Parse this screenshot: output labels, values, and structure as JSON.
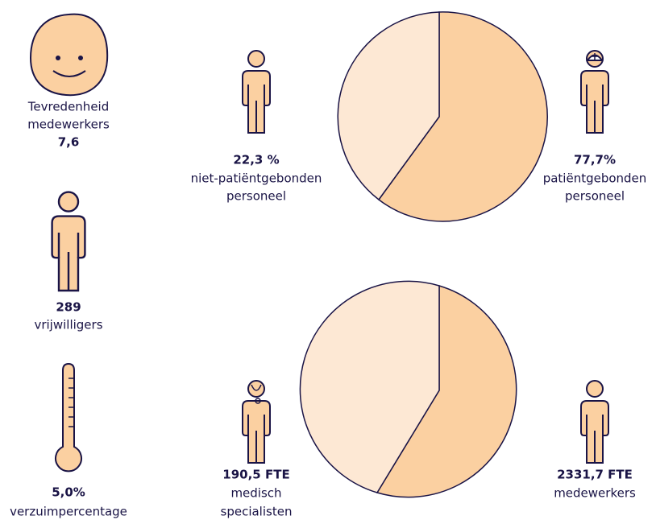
{
  "items": [
    {
      "label": [
        "Tevredenheid",
        "medewerkers"
      ],
      "value": "7,6"
    },
    {
      "value": "22,3 %",
      "label": [
        "niet-patiëntgebonden",
        "personeel"
      ]
    },
    {
      "value": "77,7%",
      "label": [
        "patiëntgebonden",
        "personeel"
      ]
    },
    {
      "value": "289",
      "label": [
        "vrijwilligers"
      ]
    },
    {
      "value": "5,0%",
      "label": [
        "verzuimpercentage"
      ]
    },
    {
      "value": "190,5 FTE",
      "label": [
        "medisch",
        "specialisten"
      ]
    },
    {
      "value": "2331,7 FTE",
      "label": [
        "medewerkers"
      ]
    }
  ]
}
